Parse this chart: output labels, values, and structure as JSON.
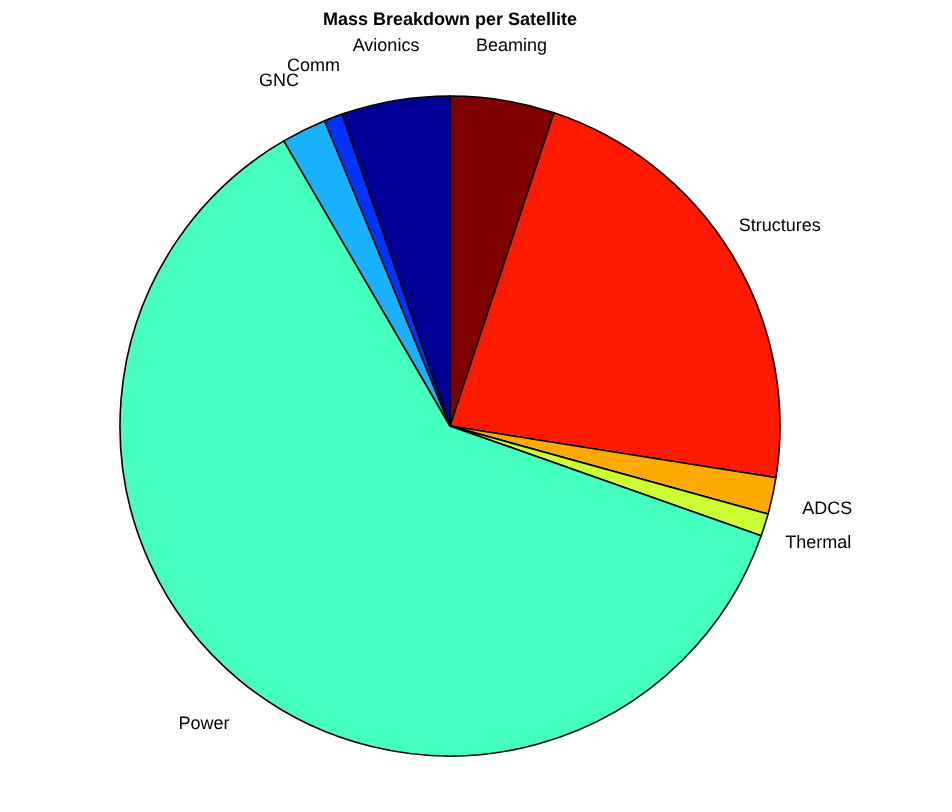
{
  "chart_data": {
    "type": "pie",
    "title": "Mass Breakdown per Satellite",
    "categories": [
      "Beaming",
      "Structures",
      "ADCS",
      "Thermal",
      "Power",
      "GNC",
      "Comm",
      "Avionics"
    ],
    "values": [
      5.1,
      22.4,
      1.8,
      1.1,
      61.2,
      2.2,
      0.9,
      5.3
    ],
    "colors": [
      "#800000",
      "#ff1a00",
      "#ffaa00",
      "#ccff33",
      "#45ffc0",
      "#1ab2ff",
      "#0033ff",
      "#000099"
    ],
    "legend": false
  }
}
